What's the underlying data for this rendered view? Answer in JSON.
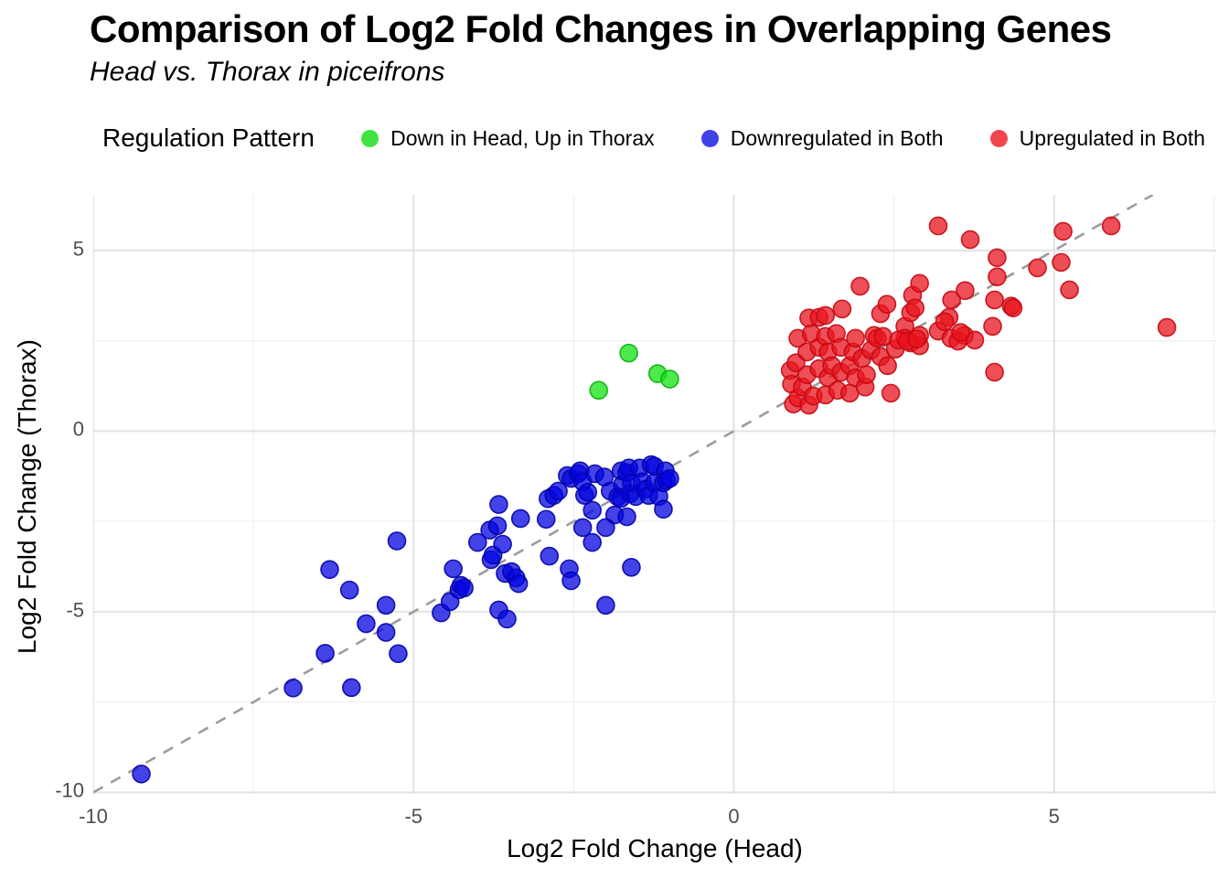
{
  "header": {
    "title": "Comparison of Log2 Fold Changes in Overlapping Genes",
    "subtitle": "Head vs. Thorax in piceifrons"
  },
  "legend": {
    "title": "Regulation Pattern",
    "items": [
      {
        "label": "Down in Head, Up in Thorax",
        "swatch": "#3FE43F"
      },
      {
        "label": "Downregulated in Both",
        "swatch": "#4141E8"
      },
      {
        "label": "Upregulated in Both",
        "swatch": "#F1464E"
      }
    ]
  },
  "axes": {
    "xlabel": "Log2 Fold Change (Head)",
    "ylabel": "Log2 Fold Change (Thorax)"
  },
  "chart_data": {
    "type": "scatter",
    "title": "Comparison of Log2 Fold Changes in Overlapping Genes",
    "subtitle": "Head vs. Thorax in piceifrons",
    "xlabel": "Log2 Fold Change (Head)",
    "ylabel": "Log2 Fold Change (Thorax)",
    "xlim": [
      -10.0,
      7.53
    ],
    "ylim": [
      -10.04,
      6.54
    ],
    "x_ticks": [
      -10,
      -5,
      0,
      5
    ],
    "y_ticks": [
      5,
      0,
      -5,
      -10
    ],
    "x_minor": [
      -7.5,
      -2.5,
      2.5,
      7.5
    ],
    "y_minor": [
      -7.5,
      -2.5,
      2.5
    ],
    "grid": {
      "major_color": "#E2E2E2",
      "minor_color": "#F0F0F0",
      "background": "#FFFFFF"
    },
    "identity_line": {
      "equation": "y = x",
      "style": "dashed",
      "color": "#9C9C9C",
      "from": [
        -10.0,
        -10.0
      ],
      "to": [
        6.54,
        6.54
      ]
    },
    "legend_position": "top",
    "point_style": {
      "radius": 9.5,
      "fill_opacity": 0.75,
      "stroke_opacity": 0.9
    },
    "series": [
      {
        "name": "Down in Head, Up in Thorax",
        "fill": "#10E310",
        "stroke": "#0CAE0C",
        "points": [
          [
            -1.64,
            2.16
          ],
          [
            -2.11,
            1.13
          ],
          [
            -1.19,
            1.59
          ],
          [
            -1.0,
            1.44
          ]
        ]
      },
      {
        "name": "Downregulated in Both",
        "fill": "#0404E0",
        "stroke": "#0303A8",
        "points": [
          [
            -9.25,
            -9.49
          ],
          [
            -6.88,
            -7.11
          ],
          [
            -5.97,
            -7.1
          ],
          [
            -6.38,
            -6.15
          ],
          [
            -6.31,
            -3.83
          ],
          [
            -6.0,
            -4.4
          ],
          [
            -5.24,
            -6.16
          ],
          [
            -5.74,
            -5.33
          ],
          [
            -5.43,
            -5.57
          ],
          [
            -5.43,
            -4.82
          ],
          [
            -5.26,
            -3.04
          ],
          [
            -4.57,
            -5.03
          ],
          [
            -4.43,
            -4.72
          ],
          [
            -4.29,
            -4.39
          ],
          [
            -4.26,
            -4.27
          ],
          [
            -4.21,
            -4.34
          ],
          [
            -4.38,
            -3.81
          ],
          [
            -4.0,
            -3.08
          ],
          [
            -3.81,
            -2.74
          ],
          [
            -3.79,
            -3.56
          ],
          [
            -3.76,
            -3.43
          ],
          [
            -3.69,
            -2.62
          ],
          [
            -3.67,
            -4.95
          ],
          [
            -3.67,
            -2.03
          ],
          [
            -3.61,
            -3.13
          ],
          [
            -3.57,
            -3.94
          ],
          [
            -3.54,
            -5.2
          ],
          [
            -3.47,
            -3.89
          ],
          [
            -3.4,
            -4.06
          ],
          [
            -3.36,
            -4.22
          ],
          [
            -3.33,
            -2.42
          ],
          [
            -2.93,
            -2.44
          ],
          [
            -2.9,
            -1.87
          ],
          [
            -2.88,
            -3.46
          ],
          [
            -2.81,
            -1.78
          ],
          [
            -2.57,
            -3.81
          ],
          [
            -2.54,
            -4.14
          ],
          [
            -2.21,
            -3.08
          ],
          [
            -2.0,
            -4.82
          ],
          [
            -1.6,
            -3.77
          ],
          [
            -2.74,
            -1.66
          ],
          [
            -2.6,
            -1.23
          ],
          [
            -2.54,
            -1.31
          ],
          [
            -2.43,
            -1.18
          ],
          [
            -2.4,
            -1.1
          ],
          [
            -2.36,
            -1.4
          ],
          [
            -2.33,
            -1.78
          ],
          [
            -2.28,
            -1.69
          ],
          [
            -2.21,
            -2.19
          ],
          [
            -2.17,
            -1.18
          ],
          [
            -2.02,
            -1.27
          ],
          [
            -1.93,
            -1.66
          ],
          [
            -1.86,
            -2.32
          ],
          [
            -1.81,
            -1.82
          ],
          [
            -1.76,
            -1.1
          ],
          [
            -1.76,
            -1.86
          ],
          [
            -1.74,
            -1.48
          ],
          [
            -1.67,
            -1.15
          ],
          [
            -1.67,
            -2.37
          ],
          [
            -1.64,
            -1.02
          ],
          [
            -1.62,
            -1.73
          ],
          [
            -1.6,
            -1.43
          ],
          [
            -1.53,
            -1.81
          ],
          [
            -1.47,
            -1.02
          ],
          [
            -1.43,
            -1.4
          ],
          [
            -1.38,
            -1.61
          ],
          [
            -1.33,
            -1.78
          ],
          [
            -1.29,
            -0.93
          ],
          [
            -1.24,
            -1.43
          ],
          [
            -1.24,
            -0.97
          ],
          [
            -1.17,
            -1.81
          ],
          [
            -1.1,
            -2.16
          ],
          [
            -1.1,
            -1.43
          ],
          [
            -1.07,
            -1.1
          ],
          [
            -1.05,
            -1.36
          ],
          [
            -1.0,
            -1.31
          ],
          [
            -2.36,
            -2.67
          ],
          [
            -2.0,
            -2.67
          ]
        ]
      },
      {
        "name": "Upregulated in Both",
        "fill": "#E8141E",
        "stroke": "#C40812",
        "points": [
          [
            0.88,
            1.68
          ],
          [
            0.9,
            1.3
          ],
          [
            0.93,
            0.75
          ],
          [
            0.97,
            1.89
          ],
          [
            1.0,
            0.92
          ],
          [
            1.0,
            2.57
          ],
          [
            1.07,
            1.22
          ],
          [
            1.14,
            1.56
          ],
          [
            1.14,
            2.19
          ],
          [
            1.17,
            0.72
          ],
          [
            1.21,
            2.7
          ],
          [
            1.24,
            0.97
          ],
          [
            1.33,
            1.73
          ],
          [
            1.33,
            2.32
          ],
          [
            1.43,
            1.0
          ],
          [
            1.43,
            2.62
          ],
          [
            1.47,
            1.48
          ],
          [
            1.47,
            2.19
          ],
          [
            1.53,
            1.81
          ],
          [
            1.6,
            2.7
          ],
          [
            1.62,
            1.13
          ],
          [
            1.67,
            1.63
          ],
          [
            1.67,
            2.32
          ],
          [
            1.81,
            1.05
          ],
          [
            1.81,
            1.81
          ],
          [
            1.86,
            2.19
          ],
          [
            1.9,
            1.48
          ],
          [
            1.9,
            2.57
          ],
          [
            2.0,
            2.01
          ],
          [
            2.05,
            1.22
          ],
          [
            2.07,
            1.56
          ],
          [
            2.14,
            2.24
          ],
          [
            2.19,
            2.65
          ],
          [
            2.29,
            2.06
          ],
          [
            2.4,
            1.81
          ],
          [
            2.45,
            1.05
          ],
          [
            2.52,
            2.27
          ],
          [
            2.76,
            2.44
          ],
          [
            2.9,
            2.36
          ],
          [
            1.17,
            3.13
          ],
          [
            1.33,
            3.15
          ],
          [
            1.43,
            3.2
          ],
          [
            1.69,
            3.38
          ],
          [
            1.97,
            4.01
          ],
          [
            2.29,
            3.25
          ],
          [
            2.39,
            3.51
          ],
          [
            2.67,
            2.9
          ],
          [
            2.67,
            2.57
          ],
          [
            2.76,
            3.28
          ],
          [
            2.79,
            3.76
          ],
          [
            2.83,
            3.41
          ],
          [
            2.9,
            4.09
          ],
          [
            2.9,
            2.65
          ],
          [
            3.19,
            2.77
          ],
          [
            3.36,
            3.15
          ],
          [
            3.4,
            3.63
          ],
          [
            3.6,
            2.65
          ],
          [
            3.61,
            3.89
          ],
          [
            3.76,
            2.52
          ],
          [
            2.24,
            2.57
          ],
          [
            2.33,
            2.62
          ],
          [
            2.57,
            2.52
          ],
          [
            2.71,
            2.49
          ],
          [
            2.86,
            2.55
          ],
          [
            3.39,
            2.57
          ],
          [
            3.5,
            2.49
          ],
          [
            3.19,
            5.68
          ],
          [
            3.29,
            3.03
          ],
          [
            3.54,
            2.73
          ],
          [
            3.69,
            5.3
          ],
          [
            4.04,
            2.9
          ],
          [
            4.07,
            1.63
          ],
          [
            4.07,
            3.63
          ],
          [
            4.11,
            4.8
          ],
          [
            4.11,
            4.27
          ],
          [
            4.33,
            3.46
          ],
          [
            4.36,
            3.41
          ],
          [
            4.74,
            4.52
          ],
          [
            5.11,
            4.67
          ],
          [
            5.14,
            5.53
          ],
          [
            5.24,
            3.91
          ],
          [
            5.89,
            5.68
          ],
          [
            6.76,
            2.87
          ]
        ]
      }
    ]
  }
}
